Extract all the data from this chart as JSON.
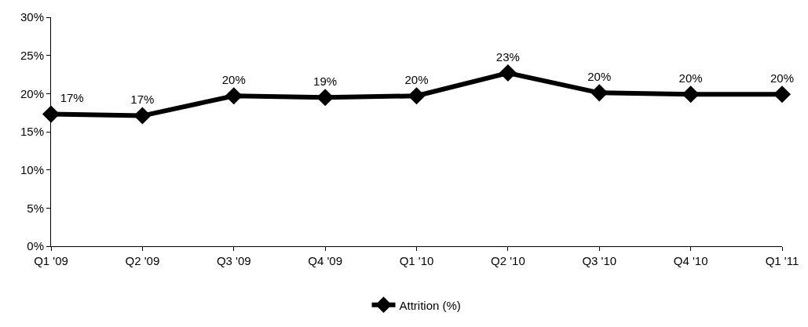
{
  "chart_data": {
    "type": "line",
    "categories": [
      "Q1 '09",
      "Q2 '09",
      "Q3 '09",
      "Q4 '09",
      "Q1 '10",
      "Q2 '10",
      "Q3 '10",
      "Q4 '10",
      "Q1 '11"
    ],
    "series": [
      {
        "name": "Attrition (%)",
        "color": "#000000",
        "values": [
          17.3,
          17.1,
          19.7,
          19.5,
          19.7,
          22.7,
          20.1,
          19.9,
          19.9
        ],
        "value_labels": [
          "17%",
          "17%",
          "20%",
          "19%",
          "20%",
          "23%",
          "20%",
          "20%",
          "20%"
        ]
      }
    ],
    "ylim": [
      0,
      30
    ],
    "yticks": [
      {
        "value": 0,
        "label": "0%"
      },
      {
        "value": 5,
        "label": "5%"
      },
      {
        "value": 10,
        "label": "10%"
      },
      {
        "value": 15,
        "label": "15%"
      },
      {
        "value": 20,
        "label": "20%"
      },
      {
        "value": 25,
        "label": "25%"
      },
      {
        "value": 30,
        "label": "30%"
      }
    ],
    "legend": "bottom",
    "marker": "diamond",
    "line_style": "solid"
  }
}
